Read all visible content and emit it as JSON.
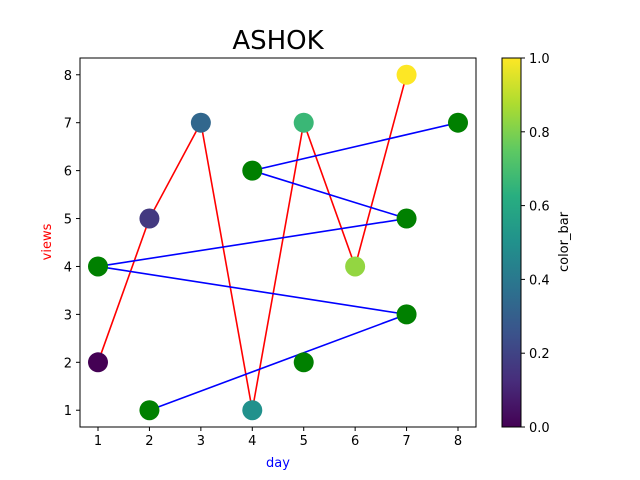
{
  "chart_data": {
    "type": "scatter",
    "title": "ASHOK",
    "xlabel": "day",
    "ylabel": "views",
    "xlabel_color": "#0000ff",
    "ylabel_color": "#ff0000",
    "xlim": [
      0.65,
      8.35
    ],
    "ylim": [
      0.65,
      8.35
    ],
    "xticks": [
      1,
      2,
      3,
      4,
      5,
      6,
      7,
      8
    ],
    "yticks": [
      1,
      2,
      3,
      4,
      5,
      6,
      7,
      8
    ],
    "grid": false,
    "series": [
      {
        "x": [
          1,
          2,
          3,
          4,
          5,
          6,
          7
        ],
        "y": [
          2,
          5,
          7,
          1,
          7,
          4,
          8
        ],
        "line_color": "#ff0000",
        "marker": "circle",
        "color_values": [
          0.0,
          0.1667,
          0.3333,
          0.5,
          0.6667,
          0.8333,
          1.0
        ],
        "colormap": "viridis"
      },
      {
        "x": [
          2,
          7,
          1,
          7,
          4,
          8,
          5
        ],
        "y": [
          1,
          3,
          4,
          5,
          6,
          7,
          2
        ],
        "line_color": "#0000ff",
        "marker": "circle",
        "line_points": 6,
        "marker_color": "#008000"
      }
    ],
    "colorbar": {
      "label": "color_bar",
      "colormap": "viridis",
      "range": [
        0.0,
        1.0
      ],
      "ticks": [
        "0.0",
        "0.2",
        "0.4",
        "0.6",
        "0.8",
        "1.0"
      ]
    }
  }
}
